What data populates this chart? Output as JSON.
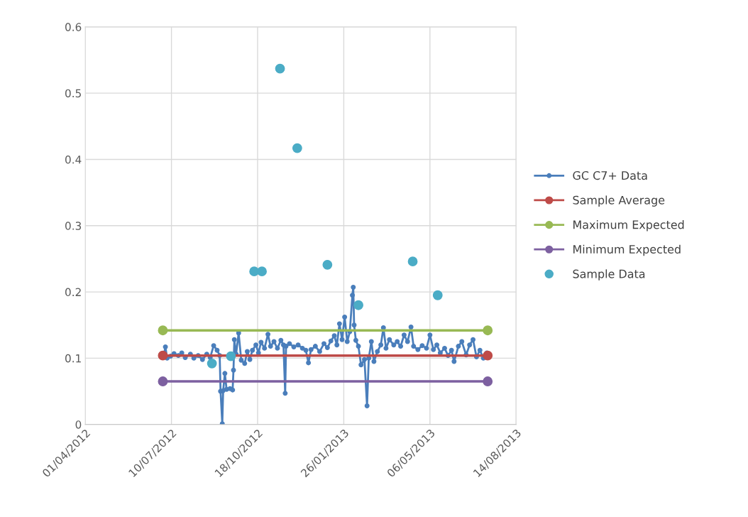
{
  "chart_data": {
    "type": "line",
    "xlim": [
      "2012-04-01",
      "2013-08-14"
    ],
    "xticks": [
      {
        "value": "2012-04-01",
        "label": "01/04/2012"
      },
      {
        "value": "2012-07-10",
        "label": "10/07/2012"
      },
      {
        "value": "2012-10-18",
        "label": "18/10/2012"
      },
      {
        "value": "2013-01-26",
        "label": "26/01/2013"
      },
      {
        "value": "2013-05-06",
        "label": "06/05/2013"
      },
      {
        "value": "2013-08-14",
        "label": "14/08/2013"
      }
    ],
    "ylim": [
      0,
      0.6
    ],
    "yticks": [
      0,
      0.1,
      0.2,
      0.3,
      0.4,
      0.5,
      0.6
    ],
    "grid": true,
    "legend": "right",
    "series": [
      {
        "name": "GC C7+ Data",
        "color": "#4a7ebb",
        "marker": "circle",
        "x": [
          "2012-07-01",
          "2012-07-03",
          "2012-07-05",
          "2012-07-09",
          "2012-07-13",
          "2012-07-18",
          "2012-07-22",
          "2012-07-26",
          "2012-08-01",
          "2012-08-05",
          "2012-08-10",
          "2012-08-15",
          "2012-08-20",
          "2012-08-24",
          "2012-08-28",
          "2012-09-01",
          "2012-09-04",
          "2012-09-05",
          "2012-09-07",
          "2012-09-08",
          "2012-09-10",
          "2012-09-12",
          "2012-09-16",
          "2012-09-19",
          "2012-09-20",
          "2012-09-21",
          "2012-09-23",
          "2012-09-26",
          "2012-09-29",
          "2012-10-03",
          "2012-10-06",
          "2012-10-09",
          "2012-10-12",
          "2012-10-16",
          "2012-10-19",
          "2012-10-22",
          "2012-10-26",
          "2012-10-30",
          "2012-11-02",
          "2012-11-06",
          "2012-11-10",
          "2012-11-14",
          "2012-11-17",
          "2012-11-19",
          "2012-11-20",
          "2012-11-24",
          "2012-11-29",
          "2012-12-04",
          "2012-12-09",
          "2012-12-13",
          "2012-12-16",
          "2012-12-19",
          "2012-12-24",
          "2012-12-29",
          "2013-01-03",
          "2013-01-07",
          "2013-01-11",
          "2013-01-15",
          "2013-01-18",
          "2013-01-21",
          "2013-01-24",
          "2013-01-27",
          "2013-01-30",
          "2013-02-02",
          "2013-02-05",
          "2013-02-06",
          "2013-02-07",
          "2013-02-09",
          "2013-02-12",
          "2013-02-15",
          "2013-02-19",
          "2013-02-22",
          "2013-02-24",
          "2013-02-27",
          "2013-03-02",
          "2013-03-06",
          "2013-03-10",
          "2013-03-13",
          "2013-03-16",
          "2013-03-20",
          "2013-03-25",
          "2013-03-29",
          "2013-04-02",
          "2013-04-06",
          "2013-04-10",
          "2013-04-14",
          "2013-04-17",
          "2013-04-22",
          "2013-04-27",
          "2013-05-02",
          "2013-05-06",
          "2013-05-10",
          "2013-05-14",
          "2013-05-18",
          "2013-05-23",
          "2013-05-27",
          "2013-05-31",
          "2013-06-03",
          "2013-06-08",
          "2013-06-12",
          "2013-06-17",
          "2013-06-21",
          "2013-06-25",
          "2013-06-29",
          "2013-07-03",
          "2013-07-07",
          "2013-07-11"
        ],
        "values": [
          0.104,
          0.117,
          0.1,
          0.103,
          0.107,
          0.104,
          0.108,
          0.101,
          0.106,
          0.1,
          0.104,
          0.098,
          0.106,
          0.101,
          0.119,
          0.112,
          0.104,
          0.05,
          0.001,
          0.051,
          0.077,
          0.053,
          0.054,
          0.052,
          0.082,
          0.128,
          0.106,
          0.138,
          0.097,
          0.092,
          0.11,
          0.098,
          0.112,
          0.12,
          0.108,
          0.124,
          0.115,
          0.136,
          0.118,
          0.125,
          0.115,
          0.127,
          0.12,
          0.047,
          0.118,
          0.122,
          0.117,
          0.12,
          0.115,
          0.112,
          0.093,
          0.113,
          0.118,
          0.11,
          0.122,
          0.116,
          0.126,
          0.134,
          0.12,
          0.152,
          0.128,
          0.162,
          0.125,
          0.14,
          0.195,
          0.207,
          0.15,
          0.127,
          0.118,
          0.09,
          0.098,
          0.028,
          0.1,
          0.125,
          0.095,
          0.11,
          0.12,
          0.146,
          0.115,
          0.128,
          0.12,
          0.125,
          0.118,
          0.135,
          0.125,
          0.147,
          0.118,
          0.113,
          0.119,
          0.115,
          0.135,
          0.113,
          0.12,
          0.108,
          0.115,
          0.104,
          0.112,
          0.095,
          0.118,
          0.125,
          0.105,
          0.12,
          0.128,
          0.102,
          0.112,
          0.1,
          0.108
        ]
      },
      {
        "name": "Sample Average",
        "type": "line",
        "color": "#be4b48",
        "marker": "circle",
        "x": [
          "2012-06-30",
          "2013-07-12"
        ],
        "values": [
          0.104,
          0.104
        ]
      },
      {
        "name": "Maximum Expected",
        "type": "line",
        "color": "#98b954",
        "marker": "circle",
        "x": [
          "2012-06-30",
          "2013-07-12"
        ],
        "values": [
          0.142,
          0.142
        ]
      },
      {
        "name": "Minimum Expected",
        "type": "line",
        "color": "#7d60a0",
        "marker": "circle",
        "x": [
          "2012-06-30",
          "2013-07-12"
        ],
        "values": [
          0.065,
          0.065
        ]
      },
      {
        "name": "Sample Data",
        "type": "scatter",
        "color": "#4bacc6",
        "marker": "circle",
        "x": [
          "2012-08-26",
          "2012-09-17",
          "2012-10-14",
          "2012-10-23",
          "2012-11-13",
          "2012-12-03",
          "2013-01-07",
          "2013-02-12",
          "2013-04-16",
          "2013-05-15"
        ],
        "values": [
          0.092,
          0.103,
          0.231,
          0.231,
          0.537,
          0.417,
          0.241,
          0.18,
          0.246,
          0.195
        ]
      }
    ]
  }
}
